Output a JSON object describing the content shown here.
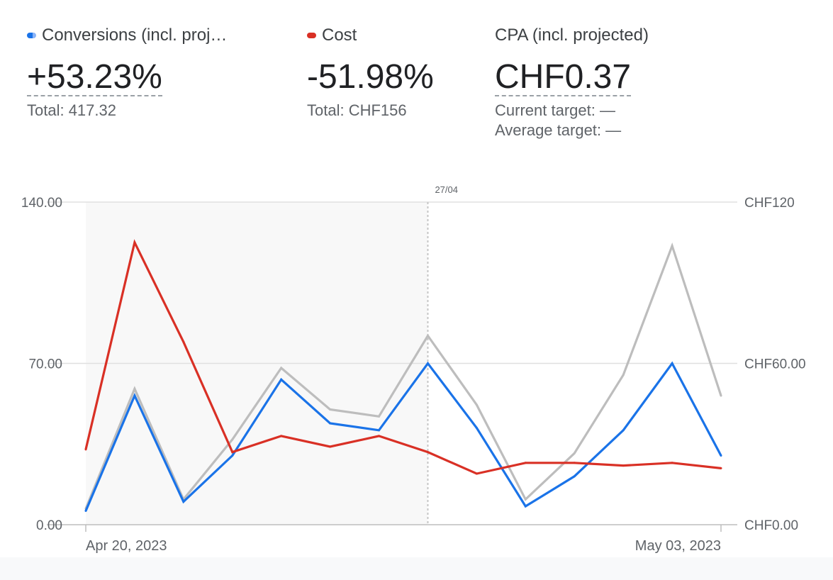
{
  "metrics": [
    {
      "label": "Conversions (incl. proj…",
      "value": "+53.23%",
      "sub1": "Total: 417.32",
      "color": "#1a73e8"
    },
    {
      "label": "Cost",
      "value": "-51.98%",
      "sub1": "Total: CHF156",
      "color": "#d93025"
    },
    {
      "label": "CPA (incl. projected)",
      "value": "CHF0.37",
      "sub1": "Current target: —",
      "sub2": "Average target: —"
    }
  ],
  "chart_data": {
    "type": "line",
    "x": [
      "Apr 20",
      "Apr 21",
      "Apr 22",
      "Apr 23",
      "Apr 24",
      "Apr 25",
      "Apr 26",
      "Apr 27",
      "Apr 28",
      "Apr 29",
      "Apr 30",
      "May 01",
      "May 02",
      "May 03"
    ],
    "x_tick_labels": [
      "Apr 20, 2023",
      "May 03, 2023"
    ],
    "marker_label": "27/04",
    "marker_index": 7,
    "shaded_range": [
      0,
      7
    ],
    "y_left": {
      "ticks": [
        "0.00",
        "70.00",
        "140.00"
      ],
      "ylim": [
        0,
        140
      ]
    },
    "y_right": {
      "ticks": [
        "CHF0.00",
        "CHF60.00",
        "CHF120"
      ],
      "ylim": [
        0,
        120
      ]
    },
    "grid": true,
    "series": [
      {
        "axis": "left",
        "color": "#bdbdbd",
        "values": [
          7,
          59,
          11,
          37,
          68,
          50,
          47,
          82,
          52,
          11,
          31,
          65,
          121,
          56
        ]
      },
      {
        "axis": "left",
        "color": "#1a73e8",
        "values": [
          6,
          56,
          10,
          30,
          63,
          44,
          41,
          70,
          42,
          8,
          21,
          41,
          70,
          30
        ]
      },
      {
        "axis": "right",
        "color": "#d93025",
        "values": [
          28,
          105,
          68,
          27,
          33,
          29,
          33,
          27,
          19,
          23,
          23,
          22,
          23,
          21
        ]
      }
    ]
  }
}
